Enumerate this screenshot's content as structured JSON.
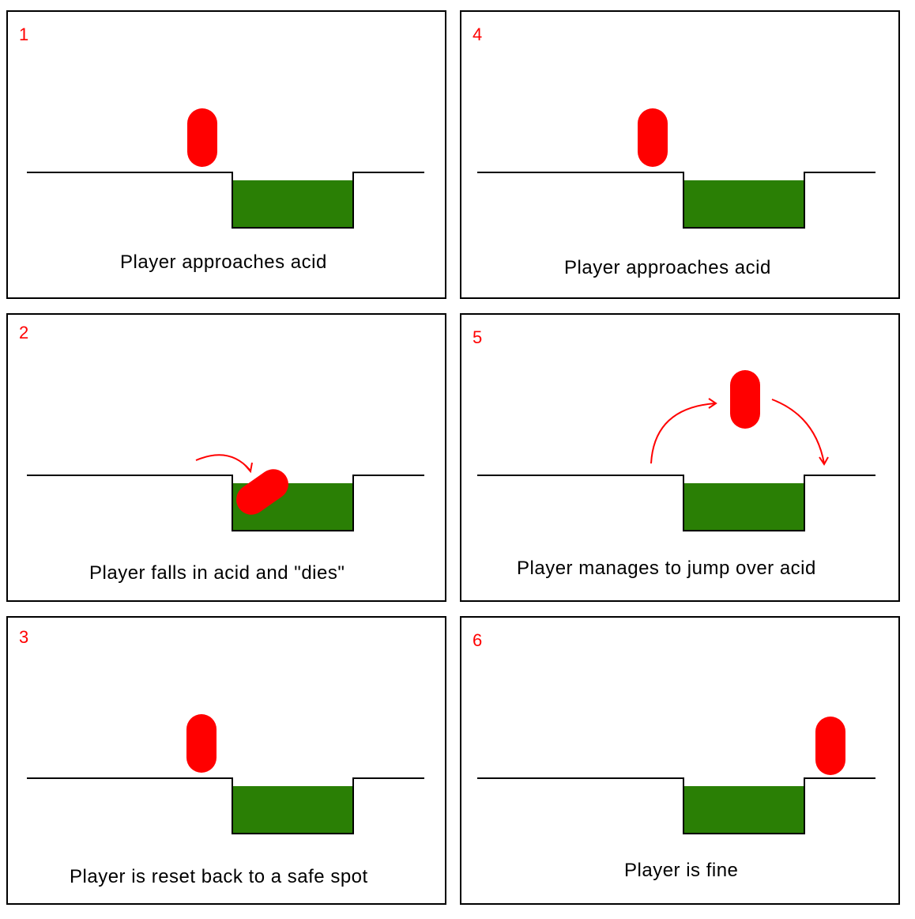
{
  "colors": {
    "player": "#ff0000",
    "acid": "#2a7f05",
    "ground": "#000000",
    "number": "#ff0000",
    "arrow": "#ff0000"
  },
  "panels": [
    {
      "number": "1",
      "caption": "Player approaches acid",
      "state": "approach"
    },
    {
      "number": "2",
      "caption": "Player falls in acid and \"dies\"",
      "state": "falling"
    },
    {
      "number": "3",
      "caption": "Player is reset back to a safe spot",
      "state": "reset"
    },
    {
      "number": "4",
      "caption": "Player approaches acid",
      "state": "approach"
    },
    {
      "number": "5",
      "caption": "Player manages to jump over acid",
      "state": "jumping"
    },
    {
      "number": "6",
      "caption": "Player is fine",
      "state": "safe-other-side"
    }
  ]
}
